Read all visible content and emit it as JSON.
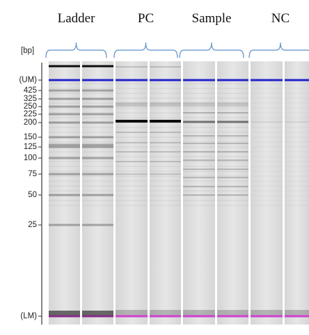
{
  "header": {
    "groups": [
      "Ladder",
      "PC",
      "Sample",
      "NC"
    ]
  },
  "axis": {
    "unit": "[bp]",
    "labels": [
      "(UM)",
      "425",
      "325",
      "250",
      "225",
      "200",
      "150",
      "125",
      "100",
      "75",
      "50",
      "25",
      "(LM)"
    ]
  }
}
